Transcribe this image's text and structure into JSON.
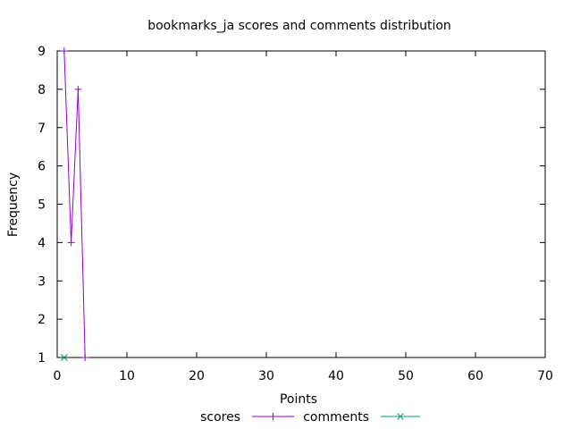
{
  "chart_data": {
    "type": "line",
    "title": "bookmarks_ja scores and comments distribution",
    "xlabel": "Points",
    "ylabel": "Frequency",
    "xlim": [
      0,
      70
    ],
    "ylim": [
      1,
      9
    ],
    "x_ticks": [
      0,
      10,
      20,
      30,
      40,
      50,
      60,
      70
    ],
    "y_ticks": [
      1,
      2,
      3,
      4,
      5,
      6,
      7,
      8,
      9
    ],
    "grid": false,
    "legend_position": "bottom-center",
    "series": [
      {
        "name": "scores",
        "color": "#9400d3",
        "marker": "plus",
        "points": [
          {
            "x": 1,
            "y": 9
          },
          {
            "x": 2,
            "y": 4
          },
          {
            "x": 3,
            "y": 8
          },
          {
            "x": 4,
            "y": 1
          }
        ]
      },
      {
        "name": "comments",
        "color": "#009e73",
        "marker": "cross",
        "points": [
          {
            "x": 1,
            "y": 1
          }
        ]
      }
    ]
  }
}
